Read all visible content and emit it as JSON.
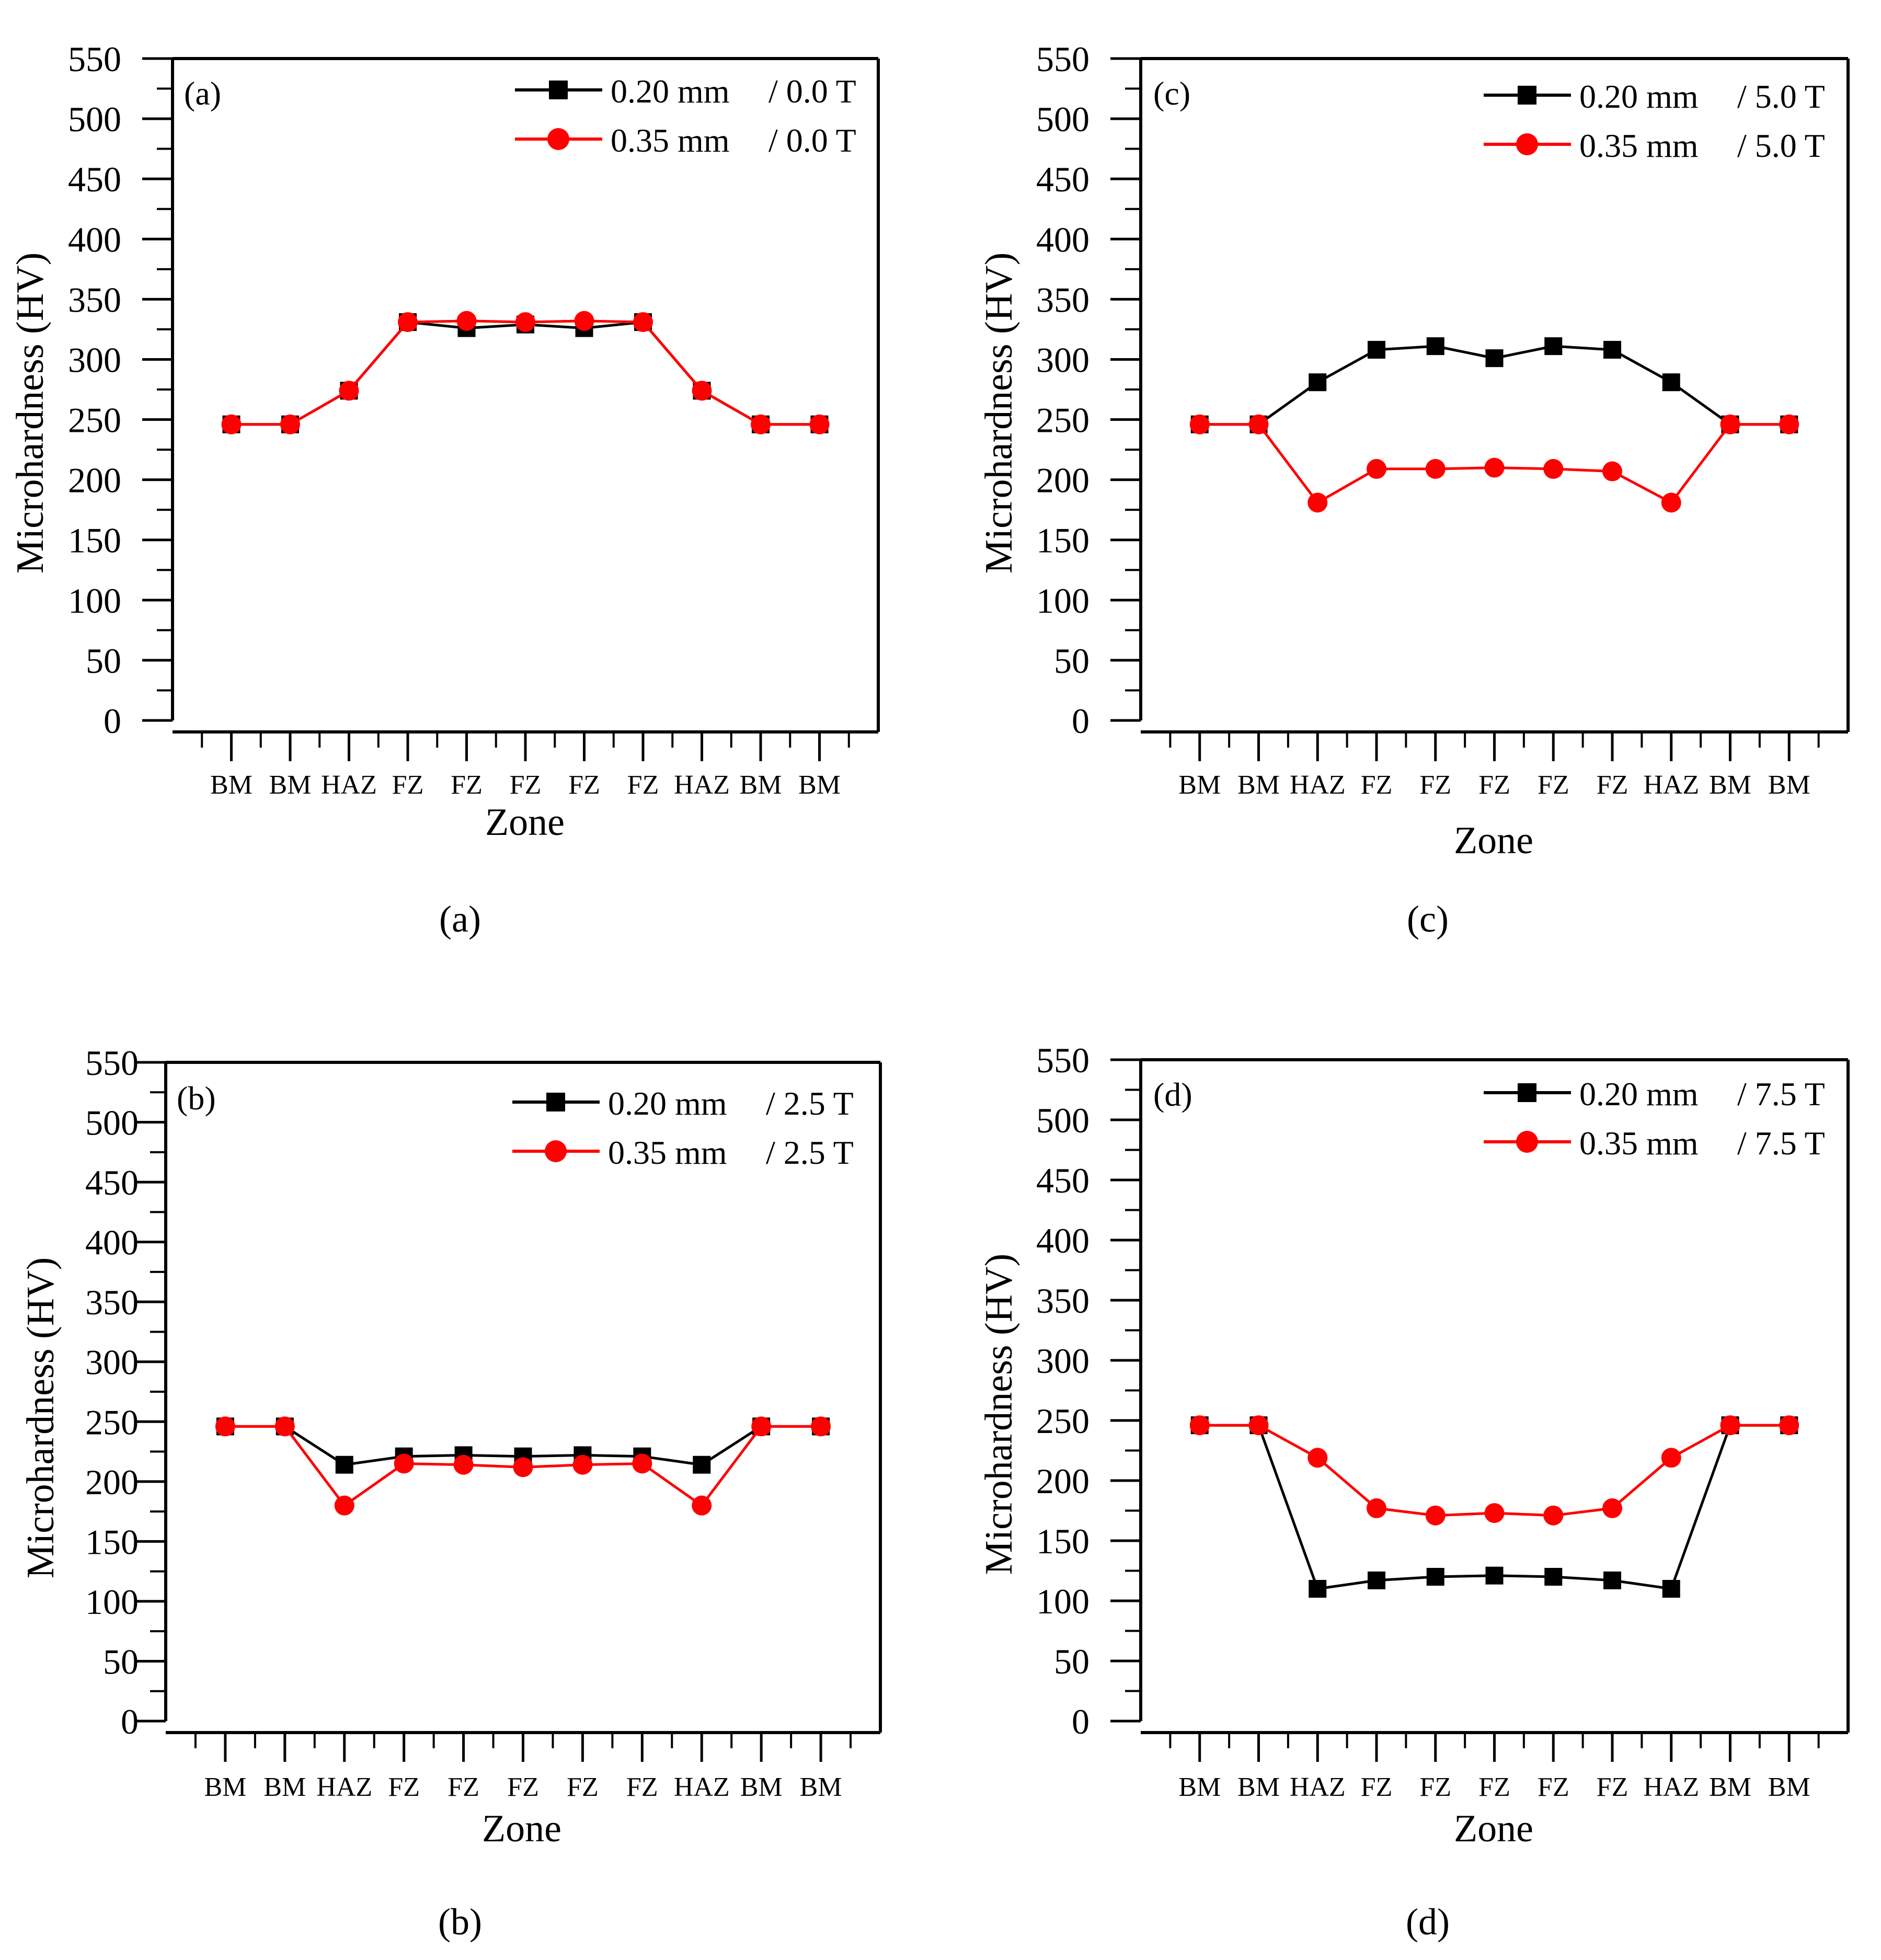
{
  "figure": {
    "panels": [
      {
        "id": "a",
        "panel_tag": "(a)",
        "caption": "(a)",
        "ylabel": "Microhardness (HV)",
        "xlabel": "Zone",
        "legend_entries": [
          {
            "size": "0.20 mm",
            "field": "/ 0.0 T"
          },
          {
            "size": "0.35 mm",
            "field": "/ 0.0 T"
          }
        ]
      },
      {
        "id": "c",
        "panel_tag": "(c)",
        "caption": "(c)",
        "ylabel": "Microhardness (HV)",
        "xlabel": "Zone",
        "legend_entries": [
          {
            "size": "0.20 mm",
            "field": "/ 5.0 T"
          },
          {
            "size": "0.35 mm",
            "field": "/ 5.0 T"
          }
        ]
      },
      {
        "id": "b",
        "panel_tag": "(b)",
        "caption": "(b)",
        "ylabel": "Microhardness (HV)",
        "xlabel": "Zone",
        "legend_entries": [
          {
            "size": "0.20 mm",
            "field": "/ 2.5 T"
          },
          {
            "size": "0.35 mm",
            "field": "/ 2.5 T"
          }
        ]
      },
      {
        "id": "d",
        "panel_tag": "(d)",
        "caption": "(d)",
        "ylabel": "Microhardness (HV)",
        "xlabel": "Zone",
        "legend_entries": [
          {
            "size": "0.20 mm",
            "field": "/ 7.5 T"
          },
          {
            "size": "0.35 mm",
            "field": "/ 7.5 T"
          }
        ]
      }
    ]
  },
  "colors": {
    "series_020": "#000000",
    "series_035": "#ff0000",
    "axis": "#000000"
  },
  "chart_data": [
    {
      "id": "a",
      "type": "line",
      "title": "(a)",
      "xlabel": "Zone",
      "ylabel": "Microhardness (HV)",
      "ylim": [
        0,
        550
      ],
      "yticks": [
        0,
        50,
        100,
        150,
        200,
        250,
        300,
        350,
        400,
        450,
        500,
        550
      ],
      "categories": [
        "BM",
        "BM",
        "HAZ",
        "FZ",
        "FZ",
        "FZ",
        "FZ",
        "FZ",
        "HAZ",
        "BM",
        "BM"
      ],
      "legend_position": "top-right",
      "series": [
        {
          "name": "0.20 mm / 0.0 T",
          "marker": "square",
          "values": [
            246,
            246,
            274,
            331,
            326,
            329,
            326,
            331,
            274,
            246,
            246
          ]
        },
        {
          "name": "0.35 mm / 0.0 T",
          "marker": "circle",
          "values": [
            246,
            246,
            274,
            331,
            332,
            331,
            332,
            331,
            274,
            246,
            246
          ]
        }
      ]
    },
    {
      "id": "c",
      "type": "line",
      "title": "(c)",
      "xlabel": "Zone",
      "ylabel": "Microhardness (HV)",
      "ylim": [
        0,
        550
      ],
      "yticks": [
        0,
        50,
        100,
        150,
        200,
        250,
        300,
        350,
        400,
        450,
        500,
        550
      ],
      "categories": [
        "BM",
        "BM",
        "HAZ",
        "FZ",
        "FZ",
        "FZ",
        "FZ",
        "FZ",
        "HAZ",
        "BM",
        "BM"
      ],
      "legend_position": "top-right",
      "series": [
        {
          "name": "0.20 mm / 5.0 T",
          "marker": "square",
          "values": [
            246,
            246,
            281,
            308,
            311,
            301,
            311,
            308,
            281,
            246,
            246
          ]
        },
        {
          "name": "0.35 mm / 5.0 T",
          "marker": "circle",
          "values": [
            246,
            246,
            181,
            209,
            209,
            210,
            209,
            207,
            181,
            246,
            246
          ]
        }
      ]
    },
    {
      "id": "b",
      "type": "line",
      "title": "(b)",
      "xlabel": "Zone",
      "ylabel": "Microhardness (HV)",
      "ylim": [
        0,
        550
      ],
      "yticks": [
        0,
        50,
        100,
        150,
        200,
        250,
        300,
        350,
        400,
        450,
        500,
        550
      ],
      "categories": [
        "BM",
        "BM",
        "HAZ",
        "FZ",
        "FZ",
        "FZ",
        "FZ",
        "FZ",
        "HAZ",
        "BM",
        "BM"
      ],
      "legend_position": "top-right",
      "series": [
        {
          "name": "0.20 mm / 2.5 T",
          "marker": "square",
          "values": [
            246,
            246,
            214,
            221,
            222,
            221,
            222,
            221,
            214,
            246,
            246
          ]
        },
        {
          "name": "0.35 mm / 2.5 T",
          "marker": "circle",
          "values": [
            246,
            246,
            180,
            215,
            214,
            212,
            214,
            215,
            180,
            246,
            246
          ]
        }
      ]
    },
    {
      "id": "d",
      "type": "line",
      "title": "(d)",
      "xlabel": "Zone",
      "ylabel": "Microhardness (HV)",
      "ylim": [
        0,
        550
      ],
      "yticks": [
        0,
        50,
        100,
        150,
        200,
        250,
        300,
        350,
        400,
        450,
        500,
        550
      ],
      "categories": [
        "BM",
        "BM",
        "HAZ",
        "FZ",
        "FZ",
        "FZ",
        "FZ",
        "FZ",
        "HAZ",
        "BM",
        "BM"
      ],
      "legend_position": "top-right",
      "series": [
        {
          "name": "0.20 mm / 7.5 T",
          "marker": "square",
          "values": [
            246,
            246,
            110,
            117,
            120,
            121,
            120,
            117,
            110,
            246,
            246
          ]
        },
        {
          "name": "0.35 mm / 7.5 T",
          "marker": "circle",
          "values": [
            246,
            246,
            219,
            177,
            171,
            173,
            171,
            177,
            219,
            246,
            246
          ]
        }
      ]
    }
  ]
}
